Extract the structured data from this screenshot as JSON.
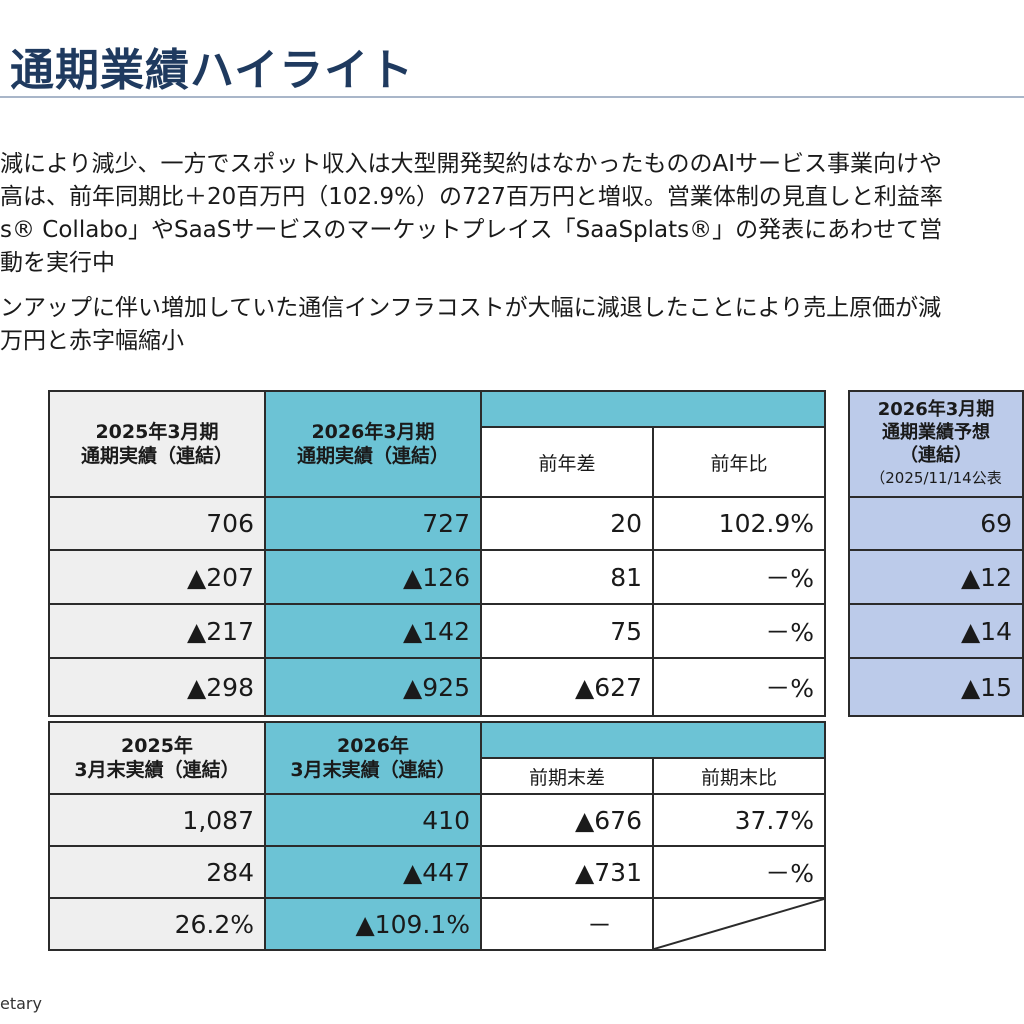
{
  "page": {
    "title": "通期業績ハイライト",
    "paragraph1": [
      "減により減少、一方でスポット収入は大型開発契約はなかったもののAIサービス事業向けや",
      "高は、前年同期比＋20百万円（102.9%）の727百万円と増収。営業体制の見直しと利益率",
      "s® Collabo」やSaaSサービスのマーケットプレイス「SaaSplats®」の発表にあわせて営",
      "動を実行中"
    ],
    "paragraph2": [
      "ンアップに伴い増加していた通信インフラコストが大幅に減退したことにより売上原価が減",
      "万円と赤字幅縮小"
    ],
    "footer": "etary"
  },
  "table1": {
    "col_prev": [
      "2025年3月期",
      "通期実績（連結）"
    ],
    "col_curr": [
      "2026年3月期",
      "通期実績（連結）"
    ],
    "col_diff": "前年差",
    "col_ratio": "前年比",
    "rows": [
      {
        "prev": "706",
        "curr": "727",
        "diff": "20",
        "ratio": "102.9%"
      },
      {
        "prev": "▲207",
        "curr": "▲126",
        "diff": "81",
        "ratio": "－%"
      },
      {
        "prev": "▲217",
        "curr": "▲142",
        "diff": "75",
        "ratio": "－%"
      },
      {
        "prev": "▲298",
        "curr": "▲925",
        "diff": "▲627",
        "ratio": "－%"
      }
    ]
  },
  "table2": {
    "col_prev": [
      "2025年",
      "3月末実績（連結）"
    ],
    "col_curr": [
      "2026年",
      "3月末実績（連結）"
    ],
    "col_diff": "前期末差",
    "col_ratio": "前期末比",
    "rows": [
      {
        "prev": "1,087",
        "curr": "410",
        "diff": "▲676",
        "ratio": "37.7%"
      },
      {
        "prev": "284",
        "curr": "▲447",
        "diff": "▲731",
        "ratio": "－%"
      },
      {
        "prev": "26.2%",
        "curr": "▲109.1%",
        "diff": "－",
        "ratio": ""
      }
    ]
  },
  "table3": {
    "header": [
      "2026年3月期",
      "通期業績予想",
      "（連結）",
      "（2025/11/14公表"
    ],
    "rows": [
      "69",
      "▲12",
      "▲14",
      "▲15"
    ]
  }
}
